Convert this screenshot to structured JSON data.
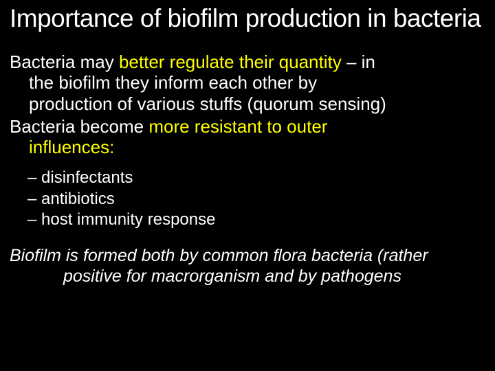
{
  "colors": {
    "background": "#000000",
    "text": "#ffffff",
    "highlight": "#ffff00"
  },
  "typography": {
    "title_fontsize": 37,
    "body_fontsize": 26,
    "sublist_fontsize": 24,
    "footnote_fontsize": 25,
    "font_family": "Verdana"
  },
  "title": "Importance of biofilm production in bacteria",
  "para1": {
    "lead": "Bacteria may ",
    "hl": "better regulate their quantity",
    "tail1": " – in",
    "cont1": "the biofilm they inform each other by",
    "cont2": "production of various stuffs (quorum sensing)"
  },
  "para2": {
    "lead": "Bacteria become ",
    "hl": "more resistant to outer",
    "hl2": "influences:"
  },
  "sublist": [
    "– disinfectants",
    "– antibiotics",
    "– host immunity response"
  ],
  "footnote": {
    "line1": "Biofilm is formed both by common flora bacteria (rather",
    "line2": "positive for macrorganism and by pathogens"
  }
}
